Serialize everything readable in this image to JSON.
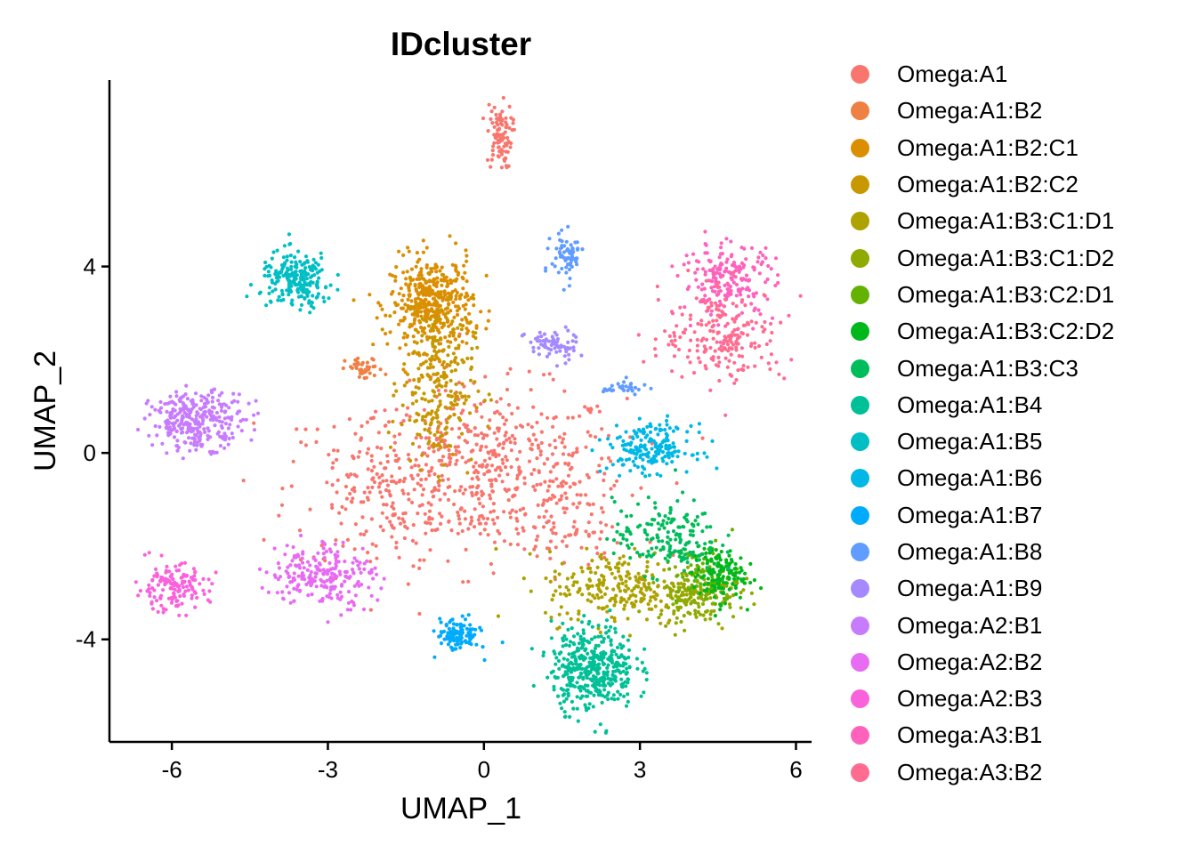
{
  "chart_data": {
    "type": "scatter",
    "title": "IDcluster",
    "xlabel": "UMAP_1",
    "ylabel": "UMAP_2",
    "xlim": [
      -7.2,
      6.3
    ],
    "ylim": [
      -6.2,
      8.0
    ],
    "x_ticks": [
      -6,
      -3,
      0,
      3,
      6
    ],
    "x_tick_labels": [
      "-6",
      "-3",
      "0",
      "3",
      "6"
    ],
    "y_ticks": [
      -4,
      0,
      4
    ],
    "y_tick_labels": [
      "-4",
      "0",
      "4"
    ],
    "grid": false,
    "legend_position": "right",
    "series": [
      {
        "name": "Omega:A1",
        "color": "#F8766D",
        "clusters": [
          {
            "cx": 0.1,
            "cy": -0.4,
            "sx": 1.3,
            "sy": 0.9,
            "n": 550
          },
          {
            "cx": -2.0,
            "cy": -0.8,
            "sx": 0.9,
            "sy": 0.9,
            "n": 160
          },
          {
            "cx": 0.3,
            "cy": 6.8,
            "sx": 0.12,
            "sy": 0.35,
            "n": 90
          },
          {
            "cx": 1.6,
            "cy": -1.6,
            "sx": 0.5,
            "sy": 0.5,
            "n": 60
          }
        ]
      },
      {
        "name": "Omega:A1:B2",
        "color": "#EE8044",
        "clusters": [
          {
            "cx": -2.3,
            "cy": 1.8,
            "sx": 0.18,
            "sy": 0.12,
            "n": 40
          }
        ]
      },
      {
        "name": "Omega:A1:B2:C1",
        "color": "#DB8E00",
        "clusters": [
          {
            "cx": -1.0,
            "cy": 3.2,
            "sx": 0.4,
            "sy": 0.5,
            "n": 420
          }
        ]
      },
      {
        "name": "Omega:A1:B2:C2",
        "color": "#C79800",
        "clusters": [
          {
            "cx": -0.9,
            "cy": 1.5,
            "sx": 0.35,
            "sy": 0.9,
            "n": 260
          }
        ]
      },
      {
        "name": "Omega:A1:B3:C1:D1",
        "color": "#AEA200",
        "clusters": [
          {
            "cx": 2.6,
            "cy": -2.9,
            "sx": 0.7,
            "sy": 0.4,
            "n": 240
          }
        ]
      },
      {
        "name": "Omega:A1:B3:C1:D2",
        "color": "#8FAA00",
        "clusters": [
          {
            "cx": 4.1,
            "cy": -3.0,
            "sx": 0.4,
            "sy": 0.3,
            "n": 180
          }
        ]
      },
      {
        "name": "Omega:A1:B3:C2:D1",
        "color": "#64B200",
        "clusters": [
          {
            "cx": 4.3,
            "cy": -2.6,
            "sx": 0.3,
            "sy": 0.35,
            "n": 70
          }
        ]
      },
      {
        "name": "Omega:A1:B3:C2:D2",
        "color": "#00B81B",
        "clusters": [
          {
            "cx": 4.5,
            "cy": -2.6,
            "sx": 0.25,
            "sy": 0.3,
            "n": 140
          }
        ]
      },
      {
        "name": "Omega:A1:B3:C3",
        "color": "#00BD5C",
        "clusters": [
          {
            "cx": 3.5,
            "cy": -1.8,
            "sx": 0.5,
            "sy": 0.4,
            "n": 170
          }
        ]
      },
      {
        "name": "Omega:A1:B4",
        "color": "#00C097",
        "clusters": [
          {
            "cx": 2.1,
            "cy": -4.6,
            "sx": 0.4,
            "sy": 0.45,
            "n": 420
          }
        ]
      },
      {
        "name": "Omega:A1:B5",
        "color": "#00BFC4",
        "clusters": [
          {
            "cx": -3.6,
            "cy": 3.7,
            "sx": 0.35,
            "sy": 0.3,
            "n": 220
          }
        ]
      },
      {
        "name": "Omega:A1:B6",
        "color": "#00B8E5",
        "clusters": [
          {
            "cx": 3.2,
            "cy": 0.1,
            "sx": 0.4,
            "sy": 0.25,
            "n": 190
          }
        ]
      },
      {
        "name": "Omega:A1:B7",
        "color": "#00ABFD",
        "clusters": [
          {
            "cx": -0.5,
            "cy": -3.9,
            "sx": 0.2,
            "sy": 0.18,
            "n": 110
          }
        ]
      },
      {
        "name": "Omega:A1:B8",
        "color": "#619CFF",
        "clusters": [
          {
            "cx": 1.6,
            "cy": 4.2,
            "sx": 0.15,
            "sy": 0.25,
            "n": 70
          },
          {
            "cx": 2.7,
            "cy": 1.4,
            "sx": 0.2,
            "sy": 0.08,
            "n": 30
          }
        ]
      },
      {
        "name": "Omega:A1:B9",
        "color": "#A58AFF",
        "clusters": [
          {
            "cx": 1.3,
            "cy": 2.3,
            "sx": 0.25,
            "sy": 0.18,
            "n": 70
          }
        ]
      },
      {
        "name": "Omega:A2:B1",
        "color": "#C77CFF",
        "clusters": [
          {
            "cx": -5.5,
            "cy": 0.7,
            "sx": 0.45,
            "sy": 0.3,
            "n": 300
          }
        ]
      },
      {
        "name": "Omega:A2:B2",
        "color": "#E76BF3",
        "clusters": [
          {
            "cx": -3.1,
            "cy": -2.6,
            "sx": 0.5,
            "sy": 0.35,
            "n": 220
          }
        ]
      },
      {
        "name": "Omega:A2:B3",
        "color": "#FA62DB",
        "clusters": [
          {
            "cx": -6.0,
            "cy": -2.9,
            "sx": 0.35,
            "sy": 0.25,
            "n": 150
          }
        ]
      },
      {
        "name": "Omega:A3:B1",
        "color": "#FF62BC",
        "clusters": [
          {
            "cx": 4.7,
            "cy": 3.7,
            "sx": 0.45,
            "sy": 0.4,
            "n": 200
          }
        ]
      },
      {
        "name": "Omega:A3:B2",
        "color": "#FF6C90",
        "clusters": [
          {
            "cx": 4.6,
            "cy": 2.5,
            "sx": 0.6,
            "sy": 0.5,
            "n": 200
          }
        ]
      }
    ]
  }
}
